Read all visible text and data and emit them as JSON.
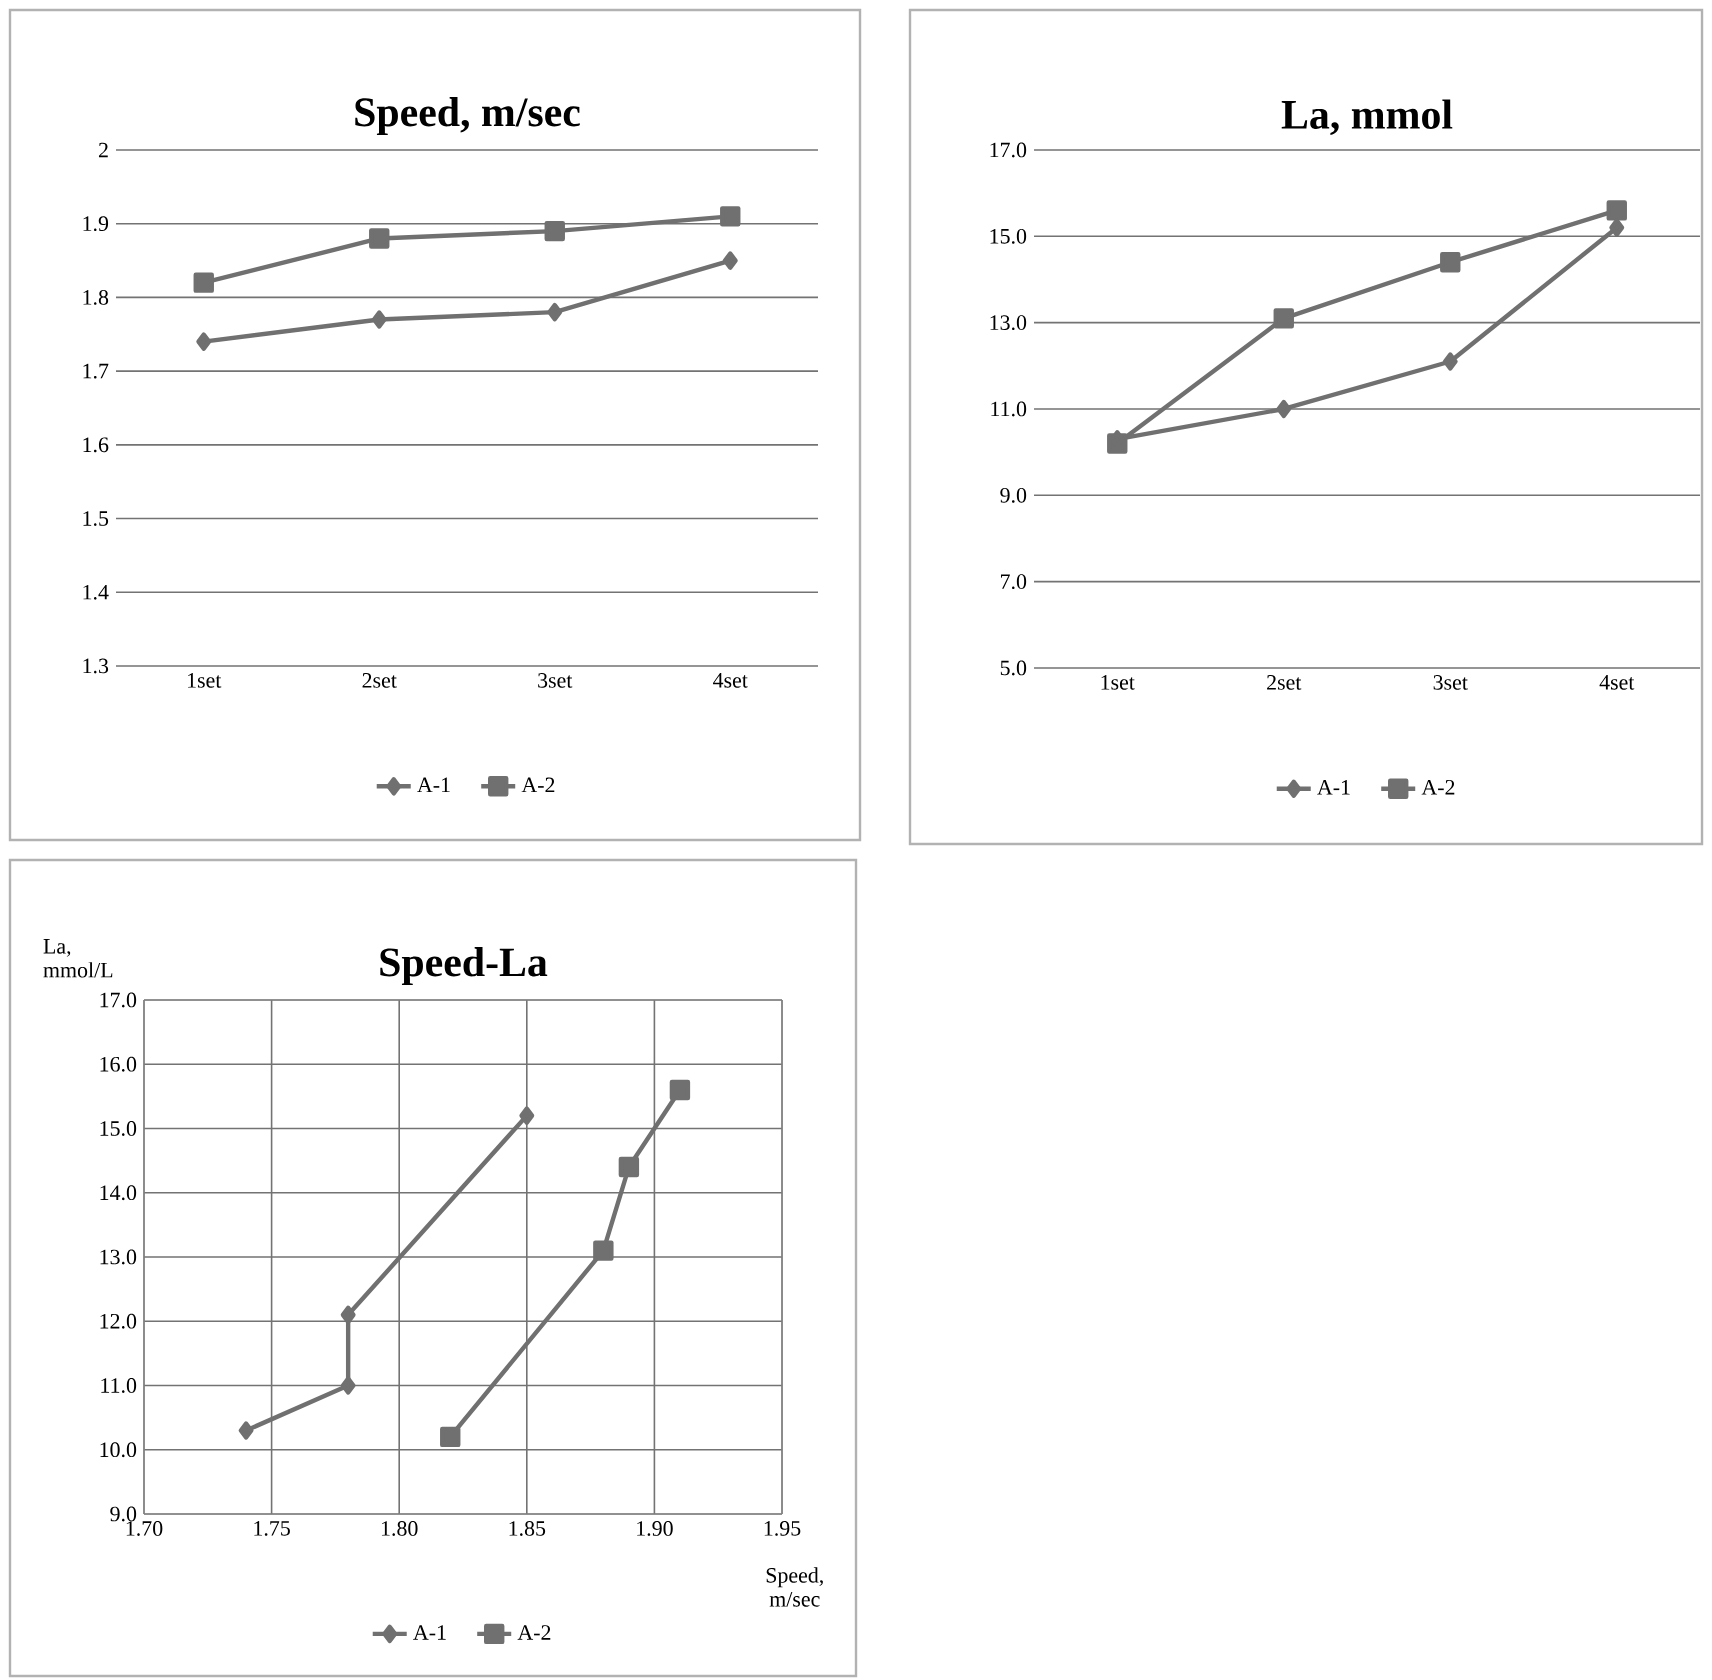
{
  "chart_data": [
    {
      "type": "line",
      "title": "Speed, m/sec",
      "categories": [
        "1set",
        "2set",
        "3set",
        "4set"
      ],
      "series": [
        {
          "name": "A-1",
          "color": "#707070",
          "marker": "diamond",
          "values": [
            1.74,
            1.77,
            1.78,
            1.85
          ]
        },
        {
          "name": "A-2",
          "color": "#707070",
          "marker": "square",
          "values": [
            1.82,
            1.88,
            1.89,
            1.91
          ]
        }
      ],
      "ylim": [
        1.3,
        2
      ],
      "yticks": [
        1.3,
        1.4,
        1.5,
        1.6,
        1.7,
        1.8,
        1.9,
        2
      ],
      "grid": "y",
      "legend": "bottom",
      "line_style": "solid"
    },
    {
      "type": "line",
      "title": "La, mmol",
      "categories": [
        "1set",
        "2set",
        "3set",
        "4set"
      ],
      "series": [
        {
          "name": "A-1",
          "color": "#707070",
          "marker": "diamond",
          "values": [
            10.3,
            11.0,
            12.1,
            15.2
          ]
        },
        {
          "name": "A-2",
          "color": "#707070",
          "marker": "square",
          "values": [
            10.2,
            13.1,
            14.4,
            15.6
          ]
        }
      ],
      "ylim": [
        5,
        17
      ],
      "yticks": [
        {
          "value": 5,
          "label": "5.0"
        },
        {
          "value": 7,
          "label": "7.0"
        },
        {
          "value": 9,
          "label": "9.0"
        },
        {
          "value": 11,
          "label": "11.0"
        },
        {
          "value": 13,
          "label": "13.0"
        },
        {
          "value": 15,
          "label": "15.0"
        },
        {
          "value": 17,
          "label": "17.0"
        }
      ],
      "grid": "y",
      "legend": "bottom",
      "line_style": "solid"
    },
    {
      "type": "line",
      "title": "Speed-La",
      "xlabel": "Speed, m/sec",
      "ylabel": "La, mmol/L",
      "series": [
        {
          "name": "A-1",
          "color": "#707070",
          "marker": "diamond",
          "x": [
            1.74,
            1.78,
            1.78,
            1.85
          ],
          "values": [
            10.3,
            11.0,
            12.1,
            15.2
          ]
        },
        {
          "name": "A-2",
          "color": "#707070",
          "marker": "square",
          "x": [
            1.82,
            1.88,
            1.89,
            1.91
          ],
          "values": [
            10.2,
            13.1,
            14.4,
            15.6
          ]
        }
      ],
      "xlim": [
        1.7,
        1.95
      ],
      "xticks": [
        {
          "value": 1.7,
          "label": "1.70"
        },
        {
          "value": 1.75,
          "label": "1.75"
        },
        {
          "value": 1.8,
          "label": "1.80"
        },
        {
          "value": 1.85,
          "label": "1.85"
        },
        {
          "value": 1.9,
          "label": "1.90"
        },
        {
          "value": 1.95,
          "label": "1.95"
        }
      ],
      "ylim": [
        9,
        17
      ],
      "yticks": [
        {
          "value": 9,
          "label": "9.0"
        },
        {
          "value": 10,
          "label": "10.0"
        },
        {
          "value": 11,
          "label": "11.0"
        },
        {
          "value": 12,
          "label": "12.0"
        },
        {
          "value": 13,
          "label": "13.0"
        },
        {
          "value": 14,
          "label": "14.0"
        },
        {
          "value": 15,
          "label": "15.0"
        },
        {
          "value": 16,
          "label": "16.0"
        },
        {
          "value": 17,
          "label": "17.0"
        }
      ],
      "grid": true,
      "legend": "bottom",
      "line_style": "solid"
    }
  ]
}
